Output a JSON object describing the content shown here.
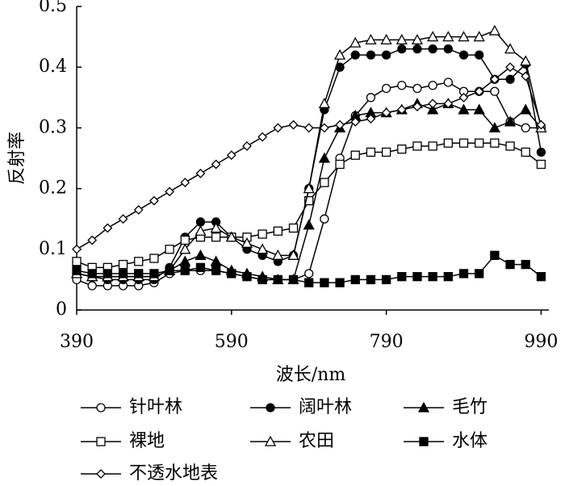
{
  "chart_data": {
    "type": "line",
    "x_label": "波长/nm",
    "y_label": "反射率",
    "x": [
      390,
      410,
      430,
      450,
      470,
      490,
      510,
      530,
      550,
      570,
      590,
      610,
      630,
      650,
      670,
      690,
      710,
      730,
      750,
      770,
      790,
      810,
      830,
      850,
      870,
      890,
      910,
      930,
      950,
      970,
      990
    ],
    "xlim": [
      390,
      1000
    ],
    "xticks": [
      390,
      590,
      790,
      990
    ],
    "ylim": [
      0,
      0.5
    ],
    "yticks": [
      0,
      0.1,
      0.2,
      0.3,
      0.4,
      0.5
    ],
    "series": [
      {
        "name": "针叶林",
        "color": "#000000",
        "marker": "circle-open",
        "values": [
          0.05,
          0.04,
          0.04,
          0.04,
          0.04,
          0.045,
          0.06,
          0.065,
          0.065,
          0.065,
          0.06,
          0.055,
          0.05,
          0.05,
          0.05,
          0.06,
          0.15,
          0.25,
          0.32,
          0.35,
          0.365,
          0.37,
          0.365,
          0.37,
          0.375,
          0.36,
          0.36,
          0.36,
          0.31,
          0.3,
          0.3
        ]
      },
      {
        "name": "阔叶林",
        "color": "#000000",
        "marker": "circle-filled",
        "values": [
          0.06,
          0.055,
          0.05,
          0.05,
          0.05,
          0.05,
          0.07,
          0.12,
          0.145,
          0.145,
          0.12,
          0.1,
          0.09,
          0.08,
          0.09,
          0.2,
          0.33,
          0.4,
          0.42,
          0.42,
          0.42,
          0.43,
          0.43,
          0.43,
          0.43,
          0.42,
          0.42,
          0.38,
          0.38,
          0.405,
          0.26
        ]
      },
      {
        "name": "毛竹",
        "color": "#000000",
        "marker": "triangle-filled",
        "values": [
          0.06,
          0.055,
          0.055,
          0.055,
          0.055,
          0.055,
          0.065,
          0.08,
          0.09,
          0.08,
          0.065,
          0.06,
          0.055,
          0.05,
          0.05,
          0.14,
          0.25,
          0.3,
          0.32,
          0.325,
          0.325,
          0.33,
          0.34,
          0.33,
          0.34,
          0.33,
          0.33,
          0.3,
          0.31,
          0.33,
          0.3
        ]
      },
      {
        "name": "裸地",
        "color": "#000000",
        "marker": "square-open",
        "values": [
          0.08,
          0.07,
          0.07,
          0.075,
          0.08,
          0.085,
          0.1,
          0.115,
          0.12,
          0.12,
          0.12,
          0.12,
          0.125,
          0.13,
          0.135,
          0.18,
          0.21,
          0.24,
          0.255,
          0.26,
          0.26,
          0.265,
          0.27,
          0.27,
          0.275,
          0.275,
          0.275,
          0.275,
          0.27,
          0.26,
          0.24
        ]
      },
      {
        "name": "农田",
        "color": "#000000",
        "marker": "triangle-open",
        "values": [
          0.06,
          0.055,
          0.055,
          0.055,
          0.055,
          0.055,
          0.065,
          0.1,
          0.13,
          0.135,
          0.12,
          0.11,
          0.1,
          0.09,
          0.09,
          0.2,
          0.34,
          0.42,
          0.44,
          0.445,
          0.445,
          0.445,
          0.445,
          0.45,
          0.45,
          0.45,
          0.45,
          0.46,
          0.43,
          0.41,
          0.3
        ]
      },
      {
        "name": "水体",
        "color": "#000000",
        "marker": "square-filled",
        "values": [
          0.065,
          0.06,
          0.06,
          0.06,
          0.06,
          0.06,
          0.065,
          0.065,
          0.07,
          0.065,
          0.06,
          0.055,
          0.05,
          0.05,
          0.05,
          0.045,
          0.045,
          0.045,
          0.05,
          0.05,
          0.05,
          0.055,
          0.055,
          0.055,
          0.055,
          0.06,
          0.06,
          0.09,
          0.075,
          0.075,
          0.055
        ]
      },
      {
        "name": "不透水地表",
        "color": "#000000",
        "marker": "diamond-open",
        "values": [
          0.1,
          0.115,
          0.135,
          0.15,
          0.165,
          0.18,
          0.195,
          0.21,
          0.225,
          0.24,
          0.255,
          0.27,
          0.285,
          0.3,
          0.305,
          0.3,
          0.3,
          0.305,
          0.31,
          0.315,
          0.325,
          0.33,
          0.335,
          0.34,
          0.34,
          0.35,
          0.36,
          0.38,
          0.4,
          0.385,
          0.305
        ]
      }
    ]
  }
}
